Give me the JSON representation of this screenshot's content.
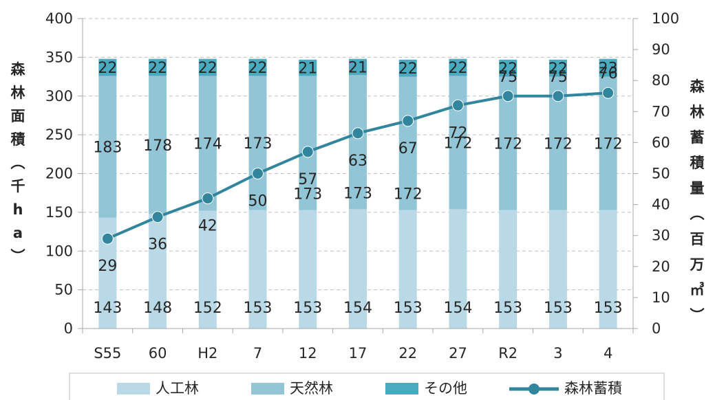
{
  "chart_data": {
    "type": "bar",
    "categories": [
      "S55",
      "60",
      "H2",
      "7",
      "12",
      "17",
      "22",
      "27",
      "R2",
      "3",
      "4"
    ],
    "series": [
      {
        "name": "人工林",
        "type": "bar",
        "axis": "left",
        "color": "#b8d9e5",
        "values": [
          143,
          148,
          152,
          153,
          153,
          154,
          153,
          154,
          153,
          153,
          153
        ]
      },
      {
        "name": "天然林",
        "type": "bar",
        "axis": "left",
        "color": "#92c5d6",
        "values": [
          183,
          178,
          174,
          173,
          173,
          173,
          172,
          172,
          172,
          172,
          172
        ]
      },
      {
        "name": "その他",
        "type": "bar",
        "axis": "left",
        "color": "#4aaabf",
        "values": [
          22,
          22,
          22,
          22,
          21,
          21,
          22,
          22,
          22,
          22,
          23
        ]
      },
      {
        "name": "森林蓄積",
        "type": "line",
        "axis": "right",
        "color": "#31859c",
        "values": [
          29,
          36,
          42,
          50,
          57,
          63,
          67,
          72,
          75,
          75,
          76
        ]
      }
    ],
    "ylabel": "森林面積（千ha）",
    "y2label": "森林蓄積量（百万㎥）",
    "ylim": [
      0,
      400
    ],
    "y2lim": [
      0,
      100
    ],
    "yticks": [
      0,
      50,
      100,
      150,
      200,
      250,
      300,
      350,
      400
    ],
    "y2ticks": [
      0,
      10,
      20,
      30,
      40,
      50,
      60,
      70,
      80,
      90,
      100
    ],
    "grid": true,
    "legend": "bottom"
  }
}
